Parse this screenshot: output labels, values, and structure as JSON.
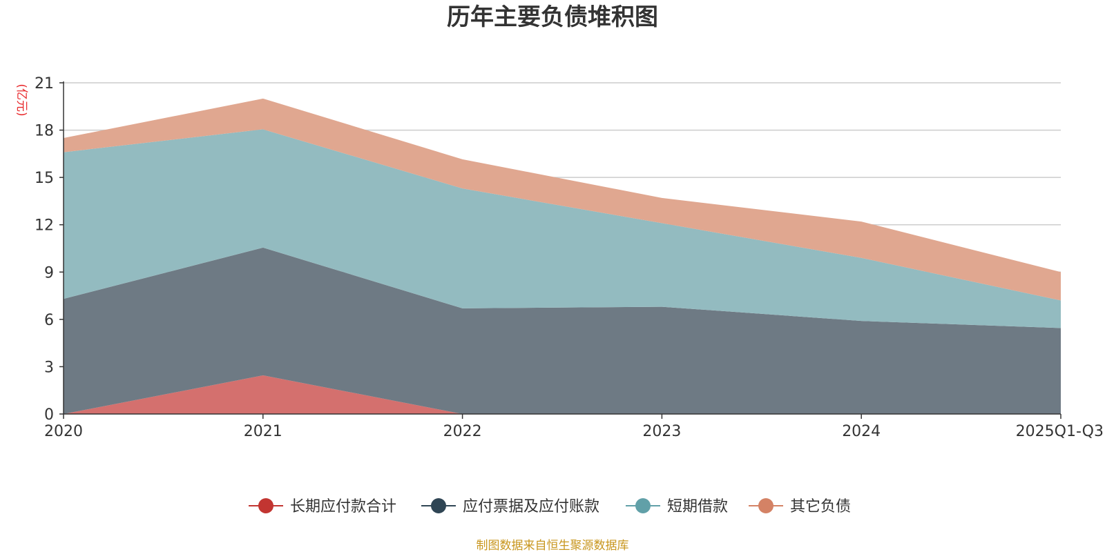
{
  "chart_data": {
    "type": "area",
    "stacked": true,
    "title": "历年主要负债堆积图",
    "ylabel": "(亿元)",
    "xlabel": "",
    "categories": [
      "2020",
      "2021",
      "2022",
      "2023",
      "2024",
      "2025Q1-Q3"
    ],
    "ylim": [
      0,
      21
    ],
    "yticks": [
      0,
      3,
      6,
      9,
      12,
      15,
      18,
      21
    ],
    "grid": true,
    "legend_position": "bottom",
    "series": [
      {
        "name": "长期应付款合计",
        "color": "#c23531",
        "fill": "#d4706e",
        "values": [
          0,
          2.45,
          0,
          0,
          0,
          0
        ]
      },
      {
        "name": "应付票据及应付账款",
        "color": "#2f4554",
        "fill": "#6e7a84",
        "values": [
          7.3,
          8.1,
          6.7,
          6.8,
          5.9,
          5.45
        ]
      },
      {
        "name": "短期借款",
        "color": "#61a0a8",
        "fill": "#93bbc0",
        "values": [
          9.3,
          7.5,
          7.6,
          5.3,
          4.0,
          1.75
        ]
      },
      {
        "name": "其它负债",
        "color": "#d48265",
        "fill": "#e0a790",
        "values": [
          0.9,
          1.95,
          1.85,
          1.6,
          2.3,
          1.8
        ]
      }
    ]
  },
  "source_note": "制图数据来自恒生聚源数据库"
}
